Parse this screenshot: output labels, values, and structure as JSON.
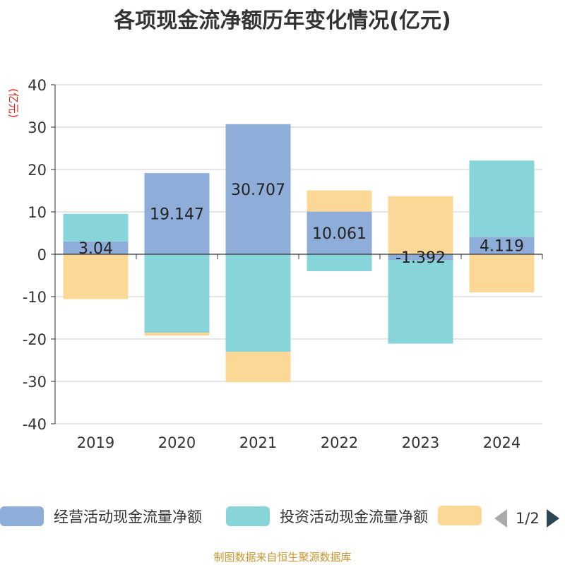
{
  "title": "各项现金流净额历年变化情况(亿元)",
  "source": "制图数据来自恒生聚源数据库",
  "pager": {
    "text": "1/2"
  },
  "chart_data": {
    "type": "bar",
    "stacked": true,
    "y_unit": "(亿元)",
    "ylim": [
      -40,
      40
    ],
    "y_ticks": [
      40,
      30,
      20,
      10,
      0,
      -10,
      -20,
      -30,
      -40
    ],
    "categories": [
      "2019",
      "2020",
      "2021",
      "2022",
      "2023",
      "2024"
    ],
    "series": [
      {
        "name": "经营活动现金流量净额",
        "color": "#8eaed9",
        "values": [
          3.04,
          19.147,
          30.707,
          10.061,
          -1.392,
          4.119
        ],
        "labels": [
          "3.04",
          "19.147",
          "30.707",
          "10.061",
          "-1.392",
          "4.119"
        ]
      },
      {
        "name": "投资活动现金流量净额",
        "color": "#87d5d8",
        "values": [
          6.5,
          -18.5,
          -23.0,
          -4.0,
          -19.7,
          18.0
        ]
      },
      {
        "name": "",
        "color": "#fcd896",
        "values": [
          -10.6,
          -0.7,
          -7.2,
          5.0,
          13.7,
          -9.0
        ]
      }
    ],
    "legend_position": "bottom"
  }
}
